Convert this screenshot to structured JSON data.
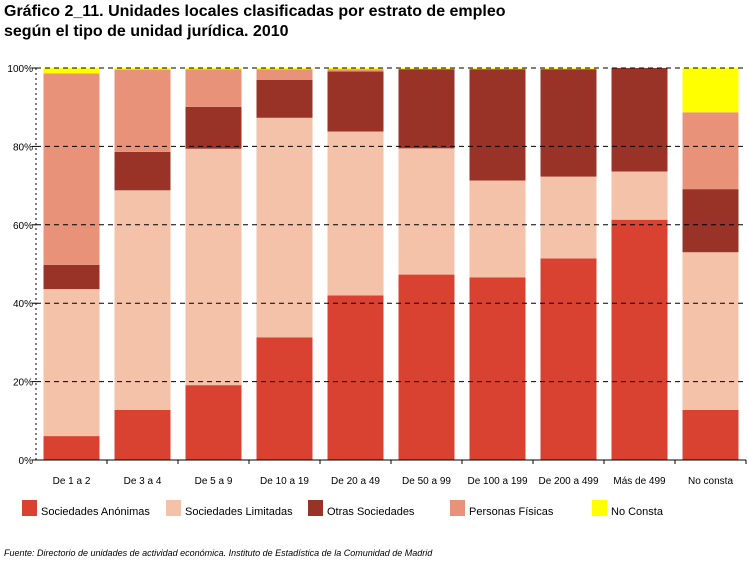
{
  "title_lines": [
    "Gráfico 2_11. Unidades locales clasificadas por estrato de empleo",
    "según el tipo de unidad jurídica. 2010"
  ],
  "source": "Fuente: Directorio de unidades de actividad económica. Instituto de Estadística de la Comunidad de Madrid",
  "chart_data": {
    "type": "bar",
    "stacked": true,
    "percent": true,
    "ylim": [
      0,
      100
    ],
    "yticks": [
      0,
      20,
      40,
      60,
      80,
      100
    ],
    "ytick_labels": [
      "0%",
      "20%",
      "40%",
      "60%",
      "80%",
      "100%"
    ],
    "grid": "horizontal dashed",
    "legend_position": "bottom",
    "categories": [
      "De 1 a 2",
      "De 3 a 4",
      "De 5 a 9",
      "De 10 a 19",
      "De 20 a 49",
      "De 50 a 99",
      "De 100 a 199",
      "De 200 a 499",
      "Más de 499",
      "No consta"
    ],
    "series": [
      {
        "name": "Sociedades Anónimas",
        "color": "#d94130",
        "values": [
          6.1,
          12.8,
          19.1,
          31.3,
          42.0,
          47.3,
          46.6,
          51.4,
          61.3,
          12.8
        ]
      },
      {
        "name": "Sociedades Limitadas",
        "color": "#f4c1a9",
        "values": [
          37.5,
          56.0,
          60.3,
          56.0,
          41.8,
          32.2,
          24.7,
          20.9,
          12.3,
          40.2
        ]
      },
      {
        "name": "Otras Sociedades",
        "color": "#9a3327",
        "values": [
          6.2,
          9.8,
          10.7,
          9.7,
          15.3,
          20.2,
          28.4,
          27.4,
          26.4,
          16.1
        ]
      },
      {
        "name": "Personas Físicas",
        "color": "#e89279",
        "values": [
          48.8,
          21.0,
          9.6,
          2.7,
          0.6,
          0.1,
          0.1,
          0.1,
          0.0,
          19.6
        ]
      },
      {
        "name": "No Consta",
        "color": "#ffff00",
        "values": [
          1.4,
          0.4,
          0.3,
          0.3,
          0.3,
          0.2,
          0.2,
          0.2,
          0.0,
          11.3
        ]
      }
    ]
  }
}
